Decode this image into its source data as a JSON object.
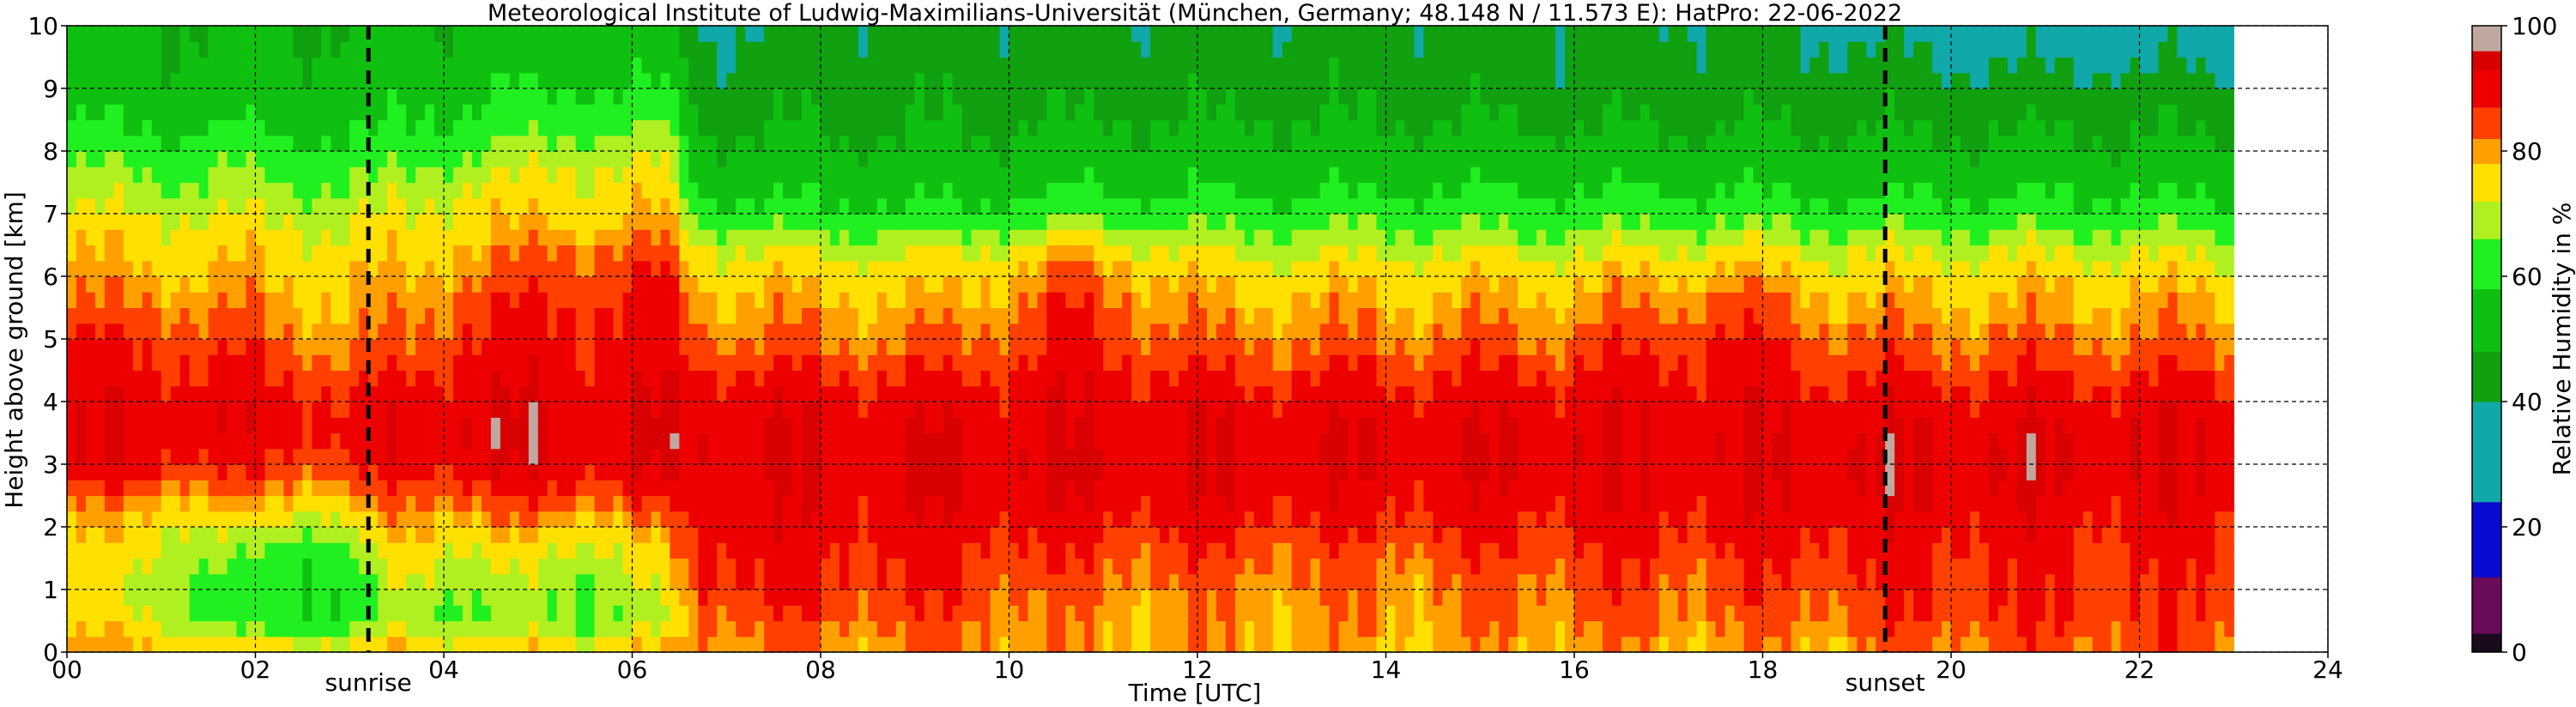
{
  "chart_data": {
    "type": "heatmap",
    "title": "Meteorological Institute of Ludwig-Maximilians-Universität (München, Germany; 48.148 N / 11.573 E):    HatPro: 22-06-2022",
    "xlabel": "Time [UTC]",
    "ylabel": "Height above ground [km]",
    "xlim": [
      0,
      24
    ],
    "ylim": [
      0,
      10
    ],
    "x_ticks": [
      "00",
      "02",
      "04",
      "06",
      "08",
      "10",
      "12",
      "14",
      "16",
      "18",
      "20",
      "22",
      "24"
    ],
    "y_ticks": [
      "0",
      "1",
      "2",
      "3",
      "4",
      "5",
      "6",
      "7",
      "8",
      "9",
      "10"
    ],
    "grid": true,
    "data_end_hour": 23.0,
    "events": [
      {
        "label": "sunrise",
        "hour": 3.2
      },
      {
        "label": "sunset",
        "hour": 19.3
      }
    ],
    "colorbar": {
      "label": "Relative Humidity in %",
      "range": [
        0,
        100
      ],
      "ticks": [
        "0",
        "20",
        "40",
        "60",
        "80",
        "100"
      ],
      "bands": [
        {
          "from": 0,
          "to": 3,
          "color": "#1a0a1e"
        },
        {
          "from": 3,
          "to": 12,
          "color": "#6a0a5a"
        },
        {
          "from": 12,
          "to": 24,
          "color": "#0a0ad0"
        },
        {
          "from": 24,
          "to": 40,
          "color": "#10a8a8"
        },
        {
          "from": 40,
          "to": 48,
          "color": "#10a010"
        },
        {
          "from": 48,
          "to": 58,
          "color": "#10c010"
        },
        {
          "from": 58,
          "to": 66,
          "color": "#20f020"
        },
        {
          "from": 66,
          "to": 72,
          "color": "#b0f020"
        },
        {
          "from": 72,
          "to": 78,
          "color": "#ffe000"
        },
        {
          "from": 78,
          "to": 82,
          "color": "#ffa000"
        },
        {
          "from": 82,
          "to": 87,
          "color": "#ff4000"
        },
        {
          "from": 87,
          "to": 93,
          "color": "#ee0000"
        },
        {
          "from": 93,
          "to": 96,
          "color": "#d80000"
        },
        {
          "from": 96,
          "to": 100,
          "color": "#c0a8a0"
        }
      ]
    },
    "rh_profile_knots_km": [
      0,
      0.5,
      1,
      1.5,
      2,
      2.5,
      3,
      3.5,
      4,
      4.5,
      5,
      5.5,
      6,
      6.5,
      7,
      7.5,
      8,
      8.5,
      9,
      9.5,
      10
    ],
    "rh_profiles": [
      {
        "hour": 0.0,
        "rh": [
          80,
          74,
          72,
          74,
          76,
          82,
          90,
          92,
          90,
          88,
          88,
          82,
          79,
          77,
          72,
          68,
          62,
          57,
          52,
          50,
          49
        ]
      },
      {
        "hour": 1.0,
        "rh": [
          80,
          73,
          70,
          73,
          76,
          82,
          90,
          92,
          91,
          88,
          86,
          82,
          79,
          76,
          72,
          67,
          62,
          56,
          52,
          50,
          49
        ]
      },
      {
        "hour": 1.8,
        "rh": [
          78,
          60,
          60,
          62,
          70,
          80,
          86,
          90,
          90,
          88,
          84,
          80,
          78,
          76,
          72,
          67,
          62,
          56,
          52,
          50,
          49
        ]
      },
      {
        "hour": 3.0,
        "rh": [
          78,
          60,
          60,
          62,
          72,
          80,
          86,
          90,
          88,
          84,
          80,
          79,
          77,
          74,
          70,
          66,
          60,
          55,
          52,
          50,
          49
        ]
      },
      {
        "hour": 3.6,
        "rh": [
          80,
          70,
          72,
          76,
          80,
          84,
          90,
          92,
          90,
          86,
          82,
          80,
          78,
          76,
          72,
          68,
          63,
          58,
          54,
          52,
          50
        ]
      },
      {
        "hour": 4.2,
        "rh": [
          78,
          66,
          68,
          72,
          78,
          86,
          92,
          94,
          92,
          90,
          88,
          86,
          82,
          79,
          76,
          72,
          66,
          60,
          56,
          52,
          50
        ]
      },
      {
        "hour": 5.5,
        "rh": [
          78,
          66,
          68,
          72,
          78,
          86,
          92,
          93,
          92,
          90,
          89,
          88,
          86,
          82,
          77,
          74,
          70,
          64,
          58,
          54,
          52
        ]
      },
      {
        "hour": 6.3,
        "rh": [
          79,
          68,
          70,
          74,
          78,
          86,
          92,
          93,
          92,
          90,
          89,
          88,
          86,
          82,
          78,
          74,
          70,
          64,
          58,
          54,
          52
        ]
      },
      {
        "hour": 6.7,
        "rh": [
          82,
          84,
          88,
          90,
          92,
          92,
          93,
          93,
          92,
          88,
          83,
          80,
          77,
          72,
          62,
          55,
          50,
          46,
          44,
          42,
          38
        ]
      },
      {
        "hour": 8.0,
        "rh": [
          80,
          84,
          87,
          88,
          90,
          91,
          92,
          92,
          90,
          86,
          82,
          79,
          76,
          70,
          60,
          54,
          50,
          47,
          45,
          44,
          42
        ]
      },
      {
        "hour": 9.5,
        "rh": [
          82,
          84,
          86,
          88,
          90,
          92,
          93,
          92,
          90,
          86,
          82,
          79,
          76,
          70,
          60,
          54,
          50,
          47,
          45,
          44,
          42
        ]
      },
      {
        "hour": 10.6,
        "rh": [
          80,
          80,
          82,
          85,
          88,
          92,
          93,
          92,
          91,
          90,
          88,
          86,
          84,
          76,
          64,
          56,
          52,
          48,
          45,
          44,
          42
        ]
      },
      {
        "hour": 12.0,
        "rh": [
          80,
          80,
          82,
          84,
          88,
          91,
          92,
          92,
          90,
          86,
          82,
          79,
          76,
          70,
          62,
          56,
          52,
          48,
          45,
          44,
          42
        ]
      },
      {
        "hour": 14.0,
        "rh": [
          79,
          80,
          81,
          83,
          87,
          90,
          92,
          92,
          90,
          86,
          82,
          79,
          76,
          70,
          62,
          56,
          52,
          48,
          45,
          44,
          42
        ]
      },
      {
        "hour": 16.0,
        "rh": [
          80,
          82,
          84,
          86,
          88,
          91,
          92,
          92,
          90,
          87,
          83,
          80,
          77,
          70,
          62,
          56,
          51,
          47,
          44,
          43,
          42
        ]
      },
      {
        "hour": 17.6,
        "rh": [
          80,
          82,
          84,
          86,
          89,
          91,
          92,
          92,
          91,
          89,
          88,
          84,
          80,
          72,
          63,
          56,
          51,
          47,
          44,
          43,
          42
        ]
      },
      {
        "hour": 19.0,
        "rh": [
          80,
          84,
          86,
          88,
          90,
          92,
          93,
          92,
          90,
          86,
          82,
          79,
          76,
          70,
          62,
          55,
          50,
          46,
          44,
          41,
          38
        ]
      },
      {
        "hour": 20.0,
        "rh": [
          82,
          86,
          87,
          88,
          90,
          92,
          93,
          92,
          90,
          86,
          82,
          79,
          76,
          70,
          62,
          55,
          50,
          46,
          43,
          38,
          36
        ]
      },
      {
        "hour": 21.5,
        "rh": [
          84,
          86,
          86,
          87,
          89,
          91,
          92,
          92,
          90,
          86,
          82,
          79,
          76,
          70,
          62,
          55,
          50,
          46,
          43,
          38,
          36
        ]
      },
      {
        "hour": 23.0,
        "rh": [
          84,
          85,
          86,
          87,
          89,
          91,
          92,
          92,
          90,
          86,
          82,
          79,
          76,
          70,
          62,
          55,
          50,
          46,
          43,
          38,
          36
        ]
      }
    ]
  }
}
